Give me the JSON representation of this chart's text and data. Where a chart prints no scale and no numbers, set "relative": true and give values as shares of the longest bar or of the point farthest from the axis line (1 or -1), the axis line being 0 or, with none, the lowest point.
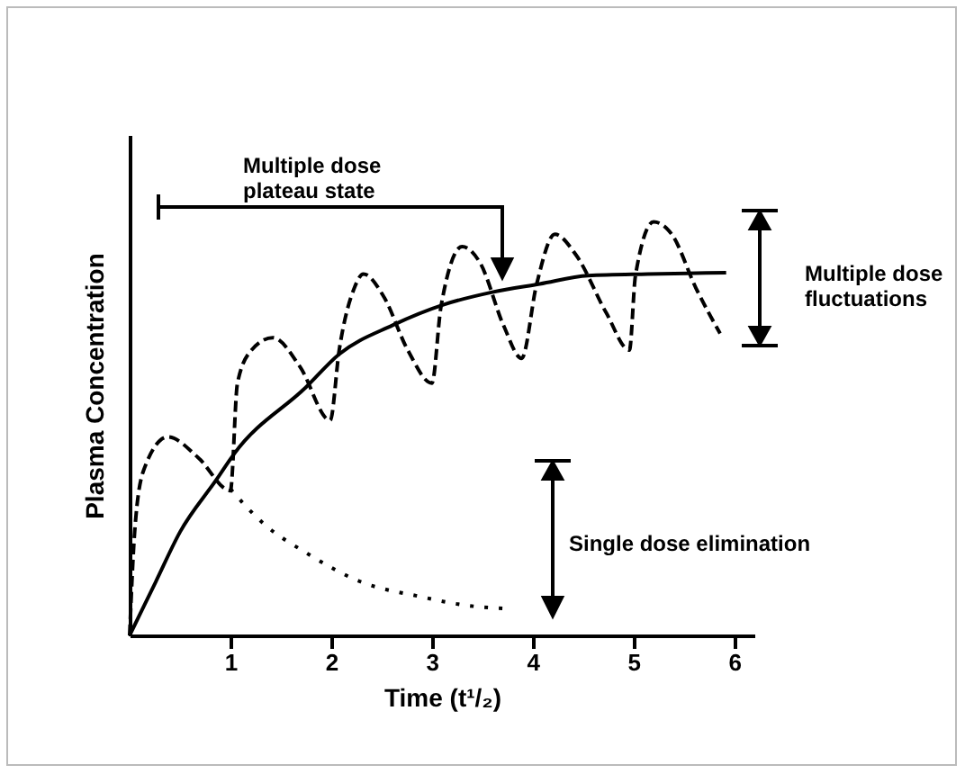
{
  "chart_data": {
    "type": "line",
    "relative": true,
    "xlabel": "Time (t¹/₂)",
    "ylabel": "Plasma Concentration",
    "xlim": [
      0,
      6.2
    ],
    "xticks": [
      1,
      2,
      3,
      4,
      5,
      6
    ],
    "grid": false,
    "marker": "none",
    "annotations": [
      "Multiple dose plateau state",
      "Multiple dose fluctuations",
      "Single dose elimination"
    ],
    "series": [
      {
        "color": "#000000",
        "line_style": "solid",
        "x": [
          0,
          0.26,
          0.5,
          0.86,
          1.04,
          1.75,
          2.08,
          2.61,
          3.12,
          3.6,
          4.07,
          4.55,
          5.14,
          5.92
        ],
        "values": [
          0,
          0.13,
          0.25,
          0.376,
          0.44,
          0.6,
          0.68,
          0.75,
          0.8,
          0.83,
          0.85,
          0.87,
          0.874,
          0.877
        ]
      },
      {
        "color": "#000000",
        "line_style": "dashed",
        "x": [
          0,
          0.05,
          0.14,
          0.38,
          0.68,
          1.0,
          1.07,
          1.21,
          1.42,
          1.69,
          1.99,
          2.08,
          2.23,
          2.32,
          2.52,
          2.76,
          3.0,
          3.09,
          3.3,
          3.48,
          3.71,
          3.89,
          4.04,
          4.22,
          4.43,
          4.73,
          4.96,
          5.02,
          5.2,
          5.38,
          5.62,
          5.86
        ],
        "values": [
          0,
          0.25,
          0.4,
          0.48,
          0.43,
          0.35,
          0.61,
          0.69,
          0.72,
          0.65,
          0.52,
          0.69,
          0.84,
          0.874,
          0.82,
          0.69,
          0.61,
          0.795,
          0.94,
          0.9,
          0.75,
          0.67,
          0.85,
          0.97,
          0.92,
          0.78,
          0.69,
          0.87,
          1,
          0.97,
          0.84,
          0.73
        ]
      },
      {
        "color": "#000000",
        "line_style": "dotted",
        "x": [
          1.0,
          1.33,
          1.75,
          2.29,
          2.88,
          3.36,
          3.74
        ],
        "values": [
          0.354,
          0.27,
          0.2,
          0.13,
          0.094,
          0.072,
          0.065
        ]
      }
    ]
  }
}
